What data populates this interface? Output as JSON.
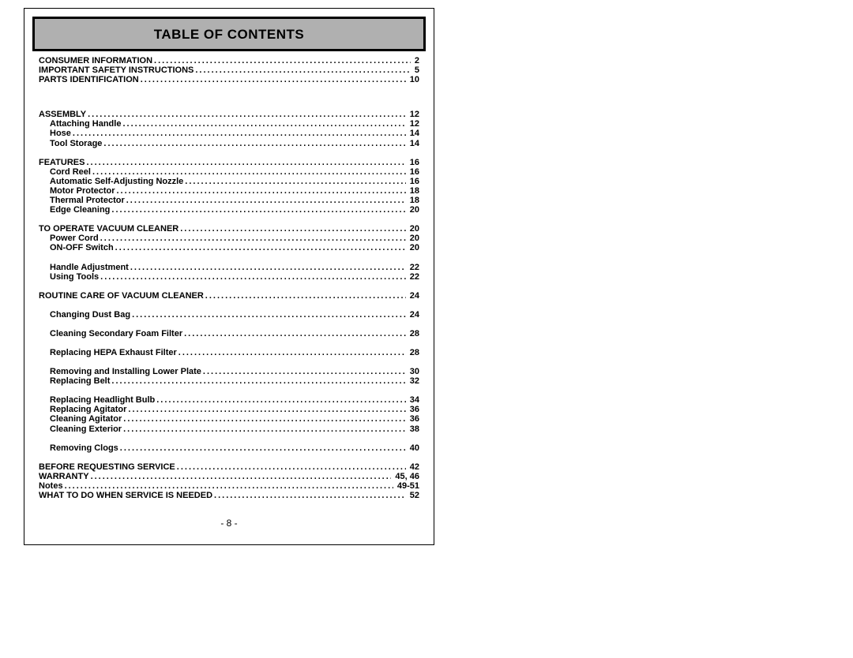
{
  "banner_title": "TABLE OF CONTENTS",
  "footer": "- 8 -",
  "entries": [
    {
      "label": "CONSUMER INFORMATION",
      "page": "2",
      "indent": 0,
      "gap_after": "none"
    },
    {
      "label": "IMPORTANT SAFETY INSTRUCTIONS",
      "page": "5",
      "indent": 0,
      "gap_after": "none"
    },
    {
      "label": "PARTS IDENTIFICATION",
      "page": "10",
      "indent": 0,
      "gap_after": "lg"
    },
    {
      "label": "ASSEMBLY",
      "page": "12",
      "indent": 0,
      "gap_after": "none"
    },
    {
      "label": "Attaching Handle",
      "page": "12",
      "indent": 1,
      "gap_after": "none"
    },
    {
      "label": "Hose",
      "page": "14",
      "indent": 1,
      "gap_after": "none"
    },
    {
      "label": "Tool Storage",
      "page": "14",
      "indent": 1,
      "gap_after": "md"
    },
    {
      "label": "FEATURES",
      "page": "16",
      "indent": 0,
      "gap_after": "none"
    },
    {
      "label": "Cord Reel",
      "page": "16",
      "indent": 1,
      "gap_after": "none"
    },
    {
      "label": "Automatic Self-Adjusting Nozzle",
      "page": "16",
      "indent": 1,
      "gap_after": "none"
    },
    {
      "label": "Motor Protector",
      "page": "18",
      "indent": 1,
      "gap_after": "none"
    },
    {
      "label": "Thermal Protector",
      "page": "18",
      "indent": 1,
      "gap_after": "none"
    },
    {
      "label": "Edge Cleaning",
      "page": "20",
      "indent": 1,
      "gap_after": "md"
    },
    {
      "label": "TO OPERATE VACUUM CLEANER",
      "page": "20",
      "indent": 0,
      "gap_after": "none"
    },
    {
      "label": "Power Cord",
      "page": "20",
      "indent": 1,
      "gap_after": "none"
    },
    {
      "label": "ON-OFF Switch",
      "page": "20",
      "indent": 1,
      "gap_after": "md"
    },
    {
      "label": "Handle Adjustment",
      "page": "22",
      "indent": 1,
      "gap_after": "none"
    },
    {
      "label": "Using Tools",
      "page": "22",
      "indent": 1,
      "gap_after": "md"
    },
    {
      "label": "ROUTINE CARE OF VACUUM CLEANER",
      "page": "24",
      "indent": 0,
      "gap_after": "md"
    },
    {
      "label": "Changing Dust Bag",
      "page": "24",
      "indent": 1,
      "gap_after": "md"
    },
    {
      "label": "Cleaning Secondary Foam Filter",
      "page": "28",
      "indent": 1,
      "gap_after": "md"
    },
    {
      "label": "Replacing HEPA Exhaust Filter",
      "page": "28",
      "indent": 1,
      "gap_after": "md"
    },
    {
      "label": "Removing and Installing Lower Plate",
      "page": "30",
      "indent": 1,
      "gap_after": "none"
    },
    {
      "label": "Replacing Belt",
      "page": "32",
      "indent": 1,
      "gap_after": "md"
    },
    {
      "label": "Replacing Headlight Bulb",
      "page": "34",
      "indent": 1,
      "gap_after": "none"
    },
    {
      "label": "Replacing Agitator",
      "page": "36",
      "indent": 1,
      "gap_after": "none"
    },
    {
      "label": "Cleaning Agitator",
      "page": "36",
      "indent": 1,
      "gap_after": "none"
    },
    {
      "label": "Cleaning Exterior",
      "page": "38",
      "indent": 1,
      "gap_after": "md"
    },
    {
      "label": "Removing Clogs",
      "page": "40",
      "indent": 1,
      "gap_after": "md"
    },
    {
      "label": "BEFORE REQUESTING SERVICE",
      "page": "42",
      "indent": 0,
      "gap_after": "none"
    },
    {
      "label": "WARRANTY",
      "page": "45, 46",
      "indent": 0,
      "gap_after": "none"
    },
    {
      "label": "Notes",
      "page": "49-51",
      "indent": 0,
      "gap_after": "none"
    },
    {
      "label": "WHAT TO DO WHEN SERVICE IS NEEDED",
      "page": "52",
      "indent": 0,
      "gap_after": "none"
    }
  ]
}
